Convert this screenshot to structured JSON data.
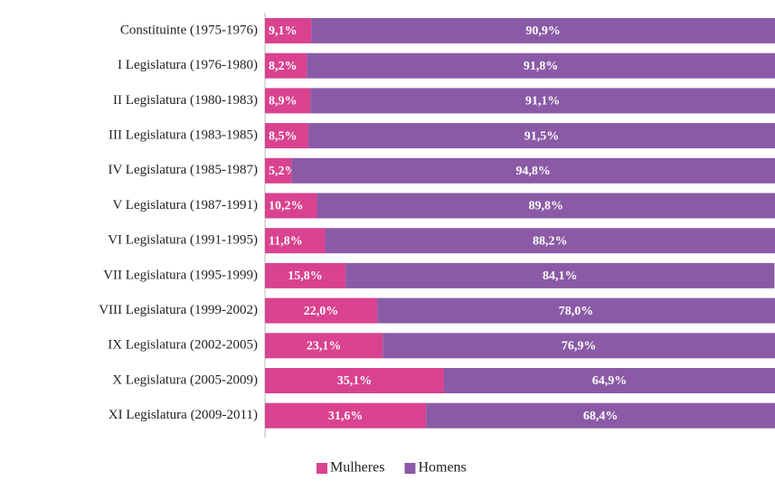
{
  "chart_data": {
    "type": "stacked_barh",
    "categories": [
      "Constituinte (1975-1976)",
      "I Legislatura (1976-1980)",
      "II Legislatura (1980-1983)",
      "III Legislatura (1983-1985)",
      "IV Legislatura (1985-1987)",
      "V Legislatura (1987-1991)",
      "VI Legislatura (1991-1995)",
      "VII Legislatura (1995-1999)",
      "VIII Legislatura (1999-2002)",
      "IX Legislatura (2002-2005)",
      "X Legislatura (2005-2009)",
      "XI Legislatura (2009-2011)"
    ],
    "series": [
      {
        "name": "Mulheres",
        "color": "#d9428f",
        "values": [
          9.1,
          8.2,
          8.9,
          8.5,
          5.2,
          10.2,
          11.8,
          15.8,
          22.0,
          23.1,
          35.1,
          31.6
        ],
        "value_labels": [
          "9,1%",
          "8,2%",
          "8,9%",
          "8,5%",
          "5,2%",
          "10,2%",
          "11,8%",
          "15,8%",
          "22,0%",
          "23,1%",
          "35,1%",
          "31,6%"
        ]
      },
      {
        "name": "Homens",
        "color": "#8a5aa6",
        "values": [
          90.9,
          91.8,
          91.1,
          91.5,
          94.8,
          89.8,
          88.2,
          84.1,
          78.0,
          76.9,
          64.9,
          68.4
        ],
        "value_labels": [
          "90,9%",
          "91,8%",
          "91,1%",
          "91,5%",
          "94,8%",
          "89,8%",
          "88,2%",
          "84,1%",
          "78,0%",
          "76,9%",
          "64,9%",
          "68,4%"
        ]
      }
    ],
    "xlim": [
      0,
      100
    ],
    "legend": "bottom"
  }
}
